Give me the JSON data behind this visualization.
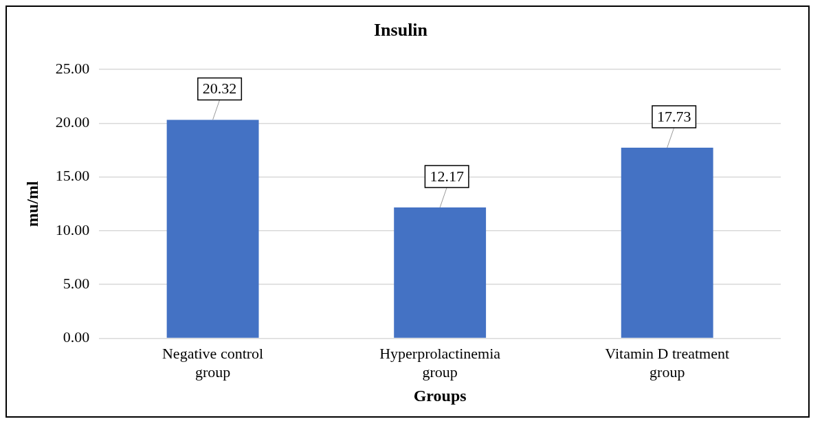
{
  "chart_data": {
    "type": "bar",
    "title": "Insulin",
    "xlabel": "Groups",
    "ylabel": "mu/ml",
    "categories": [
      "Negative control group",
      "Hyperprolactinemia group",
      "Vitamin D treatment group"
    ],
    "values": [
      20.32,
      12.17,
      17.73
    ],
    "color": "#4472c4",
    "ylim": [
      0,
      25
    ],
    "yticks": [
      {
        "value": 0,
        "label": "0.00"
      },
      {
        "value": 5,
        "label": "5.00"
      },
      {
        "value": 10,
        "label": "10.00"
      },
      {
        "value": 15,
        "label": "15.00"
      },
      {
        "value": 20,
        "label": "20.00"
      },
      {
        "value": 25,
        "label": "25.00"
      }
    ],
    "grid": "y",
    "data_labels": true
  }
}
